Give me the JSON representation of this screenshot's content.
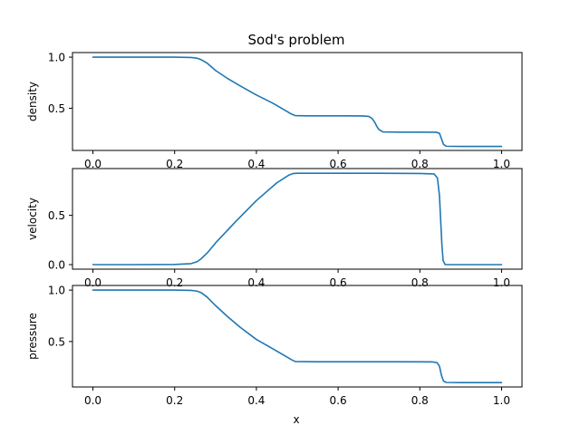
{
  "figure": {
    "title": "Sod's problem",
    "xlabel": "x",
    "line_color": "#1f77b4"
  },
  "chart_data": [
    {
      "type": "line",
      "ylabel": "density",
      "xlim": [
        -0.05,
        1.05
      ],
      "ylim": [
        0.087,
        1.045
      ],
      "xticks": [
        0.0,
        0.2,
        0.4,
        0.6,
        0.8,
        1.0
      ],
      "xtick_labels": [
        "0.0",
        "0.2",
        "0.4",
        "0.6",
        "0.8",
        "1.0"
      ],
      "yticks": [
        0.5,
        1.0
      ],
      "ytick_labels": [
        "0.5",
        "1.0"
      ],
      "grid": false,
      "x": [
        0.0,
        0.1,
        0.2,
        0.24,
        0.255,
        0.265,
        0.28,
        0.3,
        0.33,
        0.36,
        0.4,
        0.44,
        0.47,
        0.485,
        0.495,
        0.52,
        0.6,
        0.66,
        0.675,
        0.683,
        0.69,
        0.695,
        0.7,
        0.71,
        0.75,
        0.8,
        0.84,
        0.848,
        0.853,
        0.858,
        0.865,
        0.9,
        0.95,
        1.0
      ],
      "values": [
        1.0,
        1.0,
        1.0,
        0.997,
        0.99,
        0.975,
        0.94,
        0.87,
        0.79,
        0.72,
        0.63,
        0.55,
        0.48,
        0.445,
        0.428,
        0.426,
        0.426,
        0.425,
        0.42,
        0.4,
        0.36,
        0.32,
        0.29,
        0.268,
        0.266,
        0.266,
        0.265,
        0.255,
        0.2,
        0.145,
        0.128,
        0.126,
        0.126,
        0.126
      ]
    },
    {
      "type": "line",
      "ylabel": "velocity",
      "xlim": [
        -0.05,
        1.05
      ],
      "ylim": [
        -0.046,
        0.975
      ],
      "xticks": [
        0.0,
        0.2,
        0.4,
        0.6,
        0.8,
        1.0
      ],
      "xtick_labels": [
        "0.0",
        "0.2",
        "0.4",
        "0.6",
        "0.8",
        "1.0"
      ],
      "yticks": [
        0.0,
        0.5
      ],
      "ytick_labels": [
        "0.0",
        "0.5"
      ],
      "grid": false,
      "x": [
        0.0,
        0.1,
        0.2,
        0.24,
        0.255,
        0.265,
        0.28,
        0.3,
        0.35,
        0.4,
        0.45,
        0.48,
        0.49,
        0.5,
        0.6,
        0.7,
        0.8,
        0.835,
        0.843,
        0.848,
        0.851,
        0.854,
        0.857,
        0.862,
        0.9,
        0.95,
        1.0
      ],
      "values": [
        0.0,
        0.0,
        0.002,
        0.01,
        0.03,
        0.06,
        0.12,
        0.22,
        0.44,
        0.65,
        0.83,
        0.91,
        0.925,
        0.927,
        0.927,
        0.927,
        0.925,
        0.92,
        0.88,
        0.7,
        0.45,
        0.2,
        0.04,
        0.0,
        0.0,
        0.0,
        0.0
      ]
    },
    {
      "type": "line",
      "ylabel": "pressure",
      "xlim": [
        -0.05,
        1.05
      ],
      "ylim": [
        0.058,
        1.045
      ],
      "xticks": [
        0.0,
        0.2,
        0.4,
        0.6,
        0.8,
        1.0
      ],
      "xtick_labels": [
        "0.0",
        "0.2",
        "0.4",
        "0.6",
        "0.8",
        "1.0"
      ],
      "yticks": [
        0.5,
        1.0
      ],
      "ytick_labels": [
        "0.5",
        "1.0"
      ],
      "grid": false,
      "x": [
        0.0,
        0.1,
        0.2,
        0.24,
        0.255,
        0.265,
        0.28,
        0.3,
        0.33,
        0.36,
        0.4,
        0.44,
        0.47,
        0.485,
        0.495,
        0.55,
        0.65,
        0.75,
        0.83,
        0.842,
        0.848,
        0.853,
        0.858,
        0.865,
        0.9,
        0.95,
        1.0
      ],
      "values": [
        1.0,
        1.0,
        1.0,
        0.997,
        0.99,
        0.975,
        0.93,
        0.85,
        0.74,
        0.64,
        0.52,
        0.43,
        0.36,
        0.325,
        0.305,
        0.303,
        0.303,
        0.303,
        0.302,
        0.295,
        0.26,
        0.17,
        0.115,
        0.102,
        0.1,
        0.1,
        0.1
      ]
    }
  ]
}
